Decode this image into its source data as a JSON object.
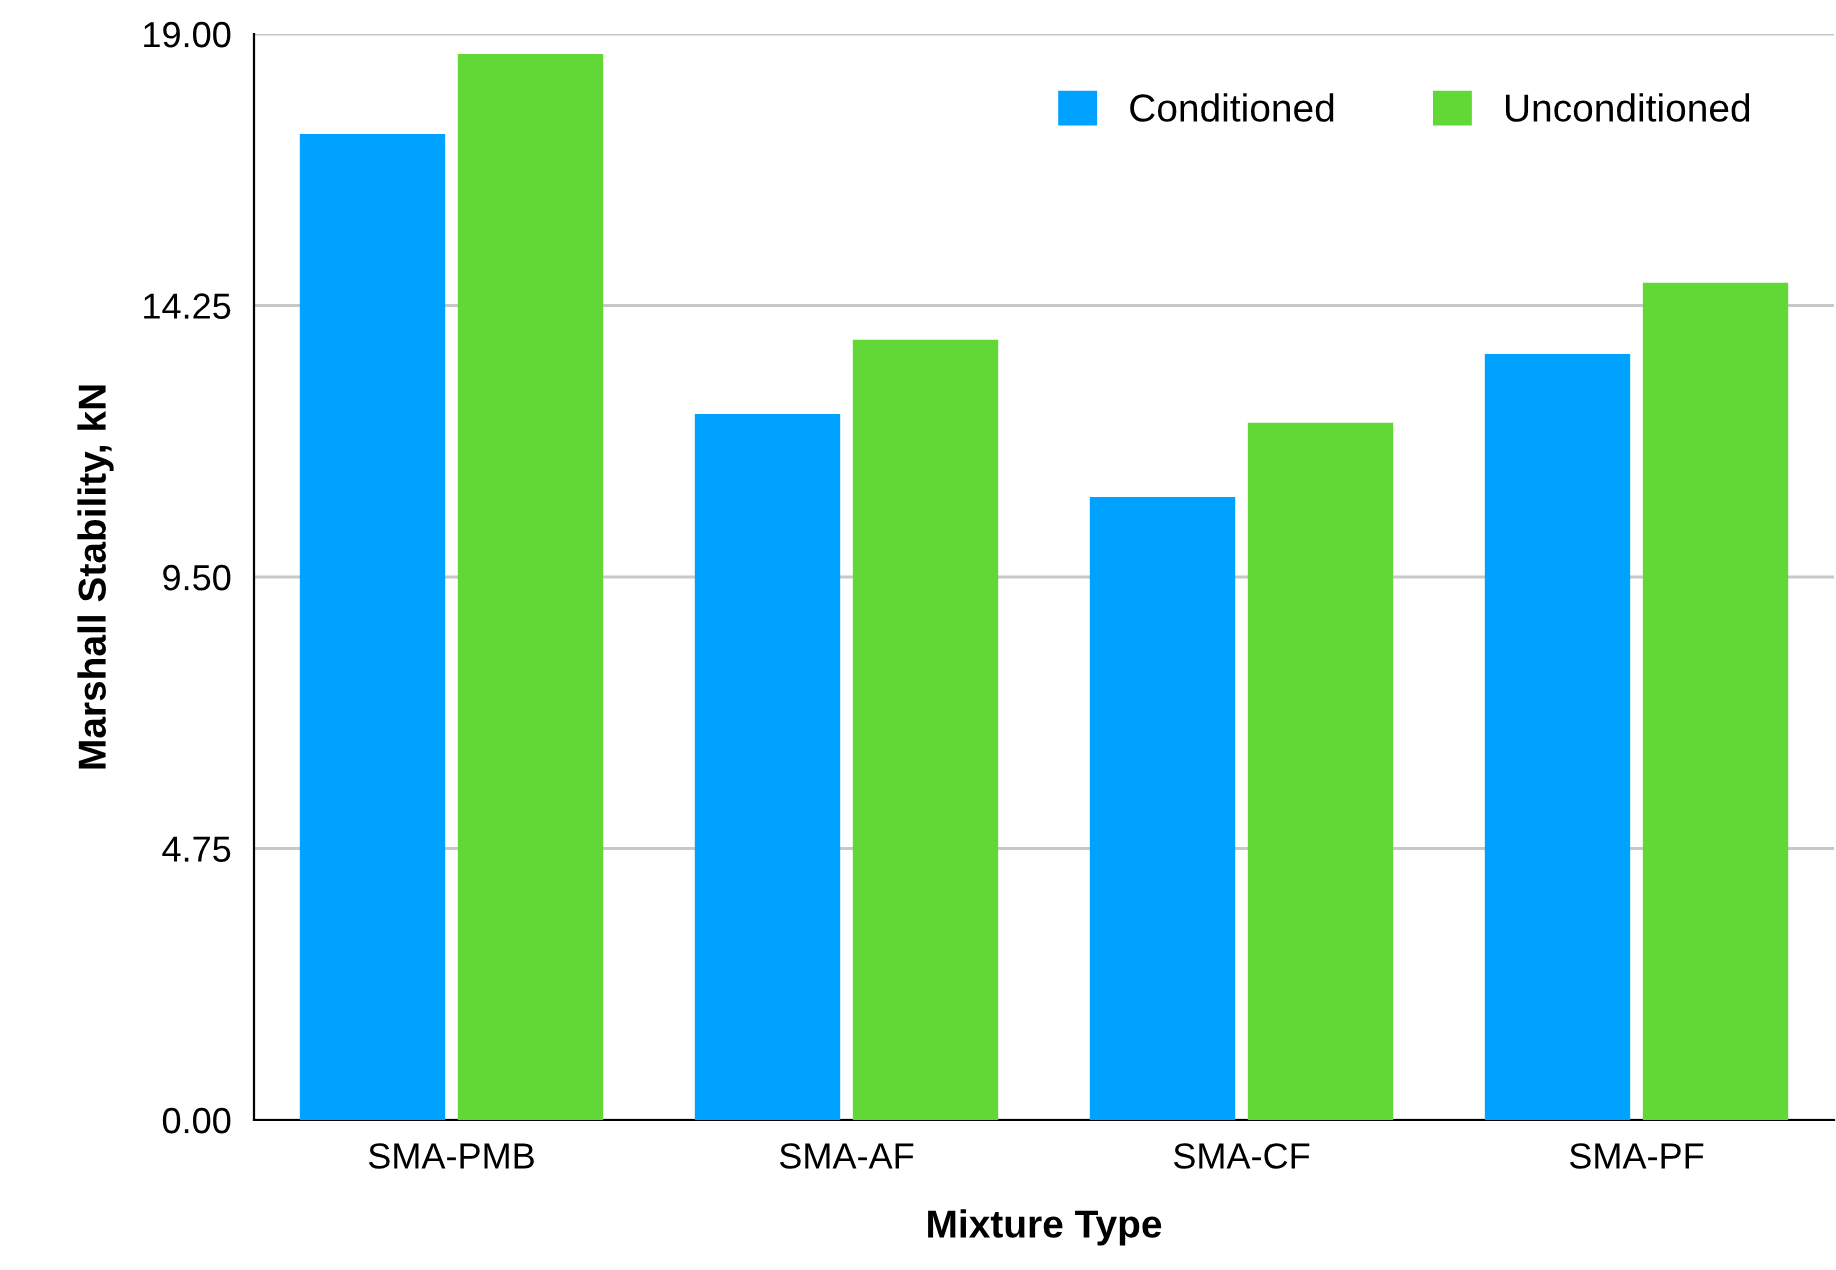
{
  "chart_data": {
    "type": "bar",
    "xlabel": "Mixture Type",
    "ylabel": "Marshall Stability, kN",
    "categories": [
      "SMA-PMB",
      "SMA-AF",
      "SMA-CF",
      "SMA-PF"
    ],
    "series": [
      {
        "name": "Conditioned",
        "color": "#00a2ff",
        "values": [
          17.25,
          12.35,
          10.9,
          13.4
        ]
      },
      {
        "name": "Unconditioned",
        "color": "#61d836",
        "values": [
          18.65,
          13.65,
          12.2,
          14.65
        ]
      }
    ],
    "ylim": [
      0,
      19
    ],
    "yticks": [
      {
        "value": 0,
        "label": "0.00"
      },
      {
        "value": 4.75,
        "label": "4.75"
      },
      {
        "value": 9.5,
        "label": "9.50"
      },
      {
        "value": 14.25,
        "label": "14.25"
      },
      {
        "value": 19,
        "label": "19.00"
      }
    ],
    "grid": "y",
    "legend": "top right"
  }
}
